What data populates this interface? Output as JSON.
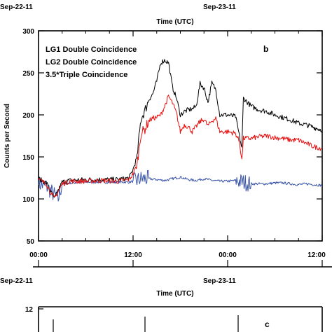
{
  "panel_b": {
    "top_axis": {
      "dates": [
        "Sep-22-11",
        "Sep-23-11"
      ],
      "label": "Time (UTC)"
    },
    "ylabel": "Counts per Second",
    "panel_letter": "b",
    "x_tick_labels": [
      "00:00",
      "12:00",
      "00:00",
      "12:00"
    ]
  },
  "panel_c": {
    "top_axis": {
      "dates": [
        "Sep-22-11",
        "Sep-23-11"
      ],
      "label": "Time (UTC)"
    },
    "panel_letter": "c",
    "y_tick_labels": [
      "12"
    ]
  },
  "colors": {
    "lg1": "#e8100f",
    "lg2": "#000000",
    "triple": "#3a55a8",
    "axis": "#000000"
  },
  "chart_data": [
    {
      "type": "line",
      "title": "",
      "xlabel": "Time (UTC)",
      "ylabel": "Counts per Second",
      "x_unit": "hours from 2011-09-22 00:00 UTC",
      "xlim": [
        0,
        36
      ],
      "ylim": [
        50,
        300
      ],
      "y_ticks": [
        50,
        100,
        150,
        200,
        250,
        300
      ],
      "x_ticks": [
        0,
        12,
        24,
        36
      ],
      "x_tick_labels": [
        "00:00",
        "12:00",
        "00:00",
        "12:00"
      ],
      "grid": false,
      "legend": "top-left",
      "series": [
        {
          "name": "LG1 Double Coincidence",
          "color": "#e8100f",
          "x": [
            0,
            1,
            2,
            3,
            4,
            6,
            8,
            10,
            11.5,
            12,
            12.5,
            13,
            13.5,
            14,
            14.5,
            15,
            15.5,
            16,
            16.5,
            17,
            17.5,
            18,
            18.5,
            19,
            19.5,
            20,
            20.5,
            21,
            21.5,
            22,
            22.5,
            23,
            24,
            25,
            25.5,
            25.8,
            26,
            27,
            28,
            29,
            30,
            31,
            32,
            33,
            34,
            35,
            36
          ],
          "y": [
            123,
            118,
            100,
            118,
            121,
            121,
            122,
            121,
            123,
            130,
            140,
            178,
            183,
            193,
            196,
            197,
            200,
            210,
            222,
            214,
            202,
            180,
            188,
            186,
            180,
            186,
            192,
            195,
            187,
            193,
            196,
            180,
            180,
            178,
            168,
            146,
            172,
            172,
            174,
            175,
            173,
            172,
            170,
            170,
            166,
            162,
            160
          ]
        },
        {
          "name": "LG2 Double Coincidence",
          "color": "#000000",
          "x": [
            0,
            1,
            2,
            3,
            4,
            6,
            8,
            10,
            11.5,
            12,
            12.5,
            13,
            13.5,
            14,
            14.5,
            15,
            15.5,
            16,
            16.5,
            17,
            17.5,
            18,
            18.5,
            19,
            19.5,
            20,
            20.5,
            21,
            21.5,
            22,
            22.5,
            23,
            24,
            25,
            25.5,
            25.8,
            26,
            27,
            28,
            29,
            30,
            31,
            32,
            33,
            34,
            35,
            36
          ],
          "y": [
            124,
            119,
            100,
            120,
            122,
            123,
            123,
            123,
            125,
            135,
            150,
            195,
            205,
            218,
            225,
            240,
            262,
            265,
            262,
            233,
            220,
            200,
            204,
            206,
            207,
            210,
            237,
            232,
            215,
            238,
            230,
            200,
            200,
            198,
            175,
            160,
            220,
            210,
            206,
            204,
            200,
            197,
            194,
            190,
            188,
            185,
            182
          ]
        },
        {
          "name": "3.5*Triple Coincidence",
          "color": "#3a55a8",
          "x": [
            0,
            1,
            2,
            2.5,
            3,
            4,
            6,
            8,
            10,
            11.5,
            12,
            12.5,
            13,
            14,
            15,
            16,
            17,
            18,
            19,
            20,
            21,
            22,
            23,
            24,
            25,
            26,
            27,
            28,
            29,
            30,
            31,
            32,
            33,
            34,
            35,
            36
          ],
          "y": [
            118,
            115,
            105,
            100,
            118,
            119,
            120,
            120,
            120,
            120,
            121,
            122,
            124,
            124,
            123,
            122,
            124,
            126,
            123,
            122,
            124,
            122,
            121,
            121,
            122,
            120,
            118,
            118,
            118,
            119,
            119,
            118,
            117,
            118,
            117,
            116
          ]
        }
      ]
    },
    {
      "type": "line",
      "title": "",
      "xlabel": "Time (UTC)",
      "ylabel": "",
      "y_tick_labels": [
        "12"
      ],
      "note": "panel c partially visible; only top edge shown",
      "series": []
    }
  ]
}
